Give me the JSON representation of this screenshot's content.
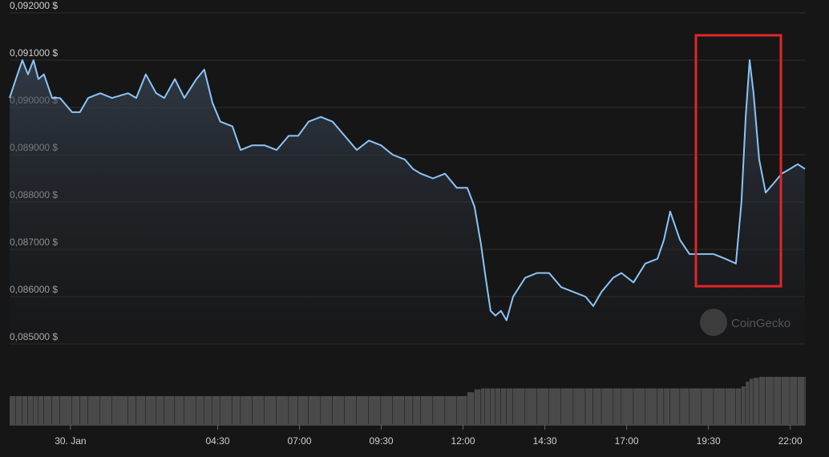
{
  "chart_data": {
    "type": "line",
    "color": "#8cc4f7",
    "grid": true,
    "watermark": "CoinGecko",
    "ylim": [
      0.085,
      0.092
    ],
    "yticks": [
      {
        "value": 0.085,
        "label": "0,085000 $"
      },
      {
        "value": 0.086,
        "label": "0,086000 $"
      },
      {
        "value": 0.087,
        "label": "0,087000 $"
      },
      {
        "value": 0.088,
        "label": "0,088000 $"
      },
      {
        "value": 0.089,
        "label": "0,089000 $"
      },
      {
        "value": 0.09,
        "label": "0,090000 $"
      },
      {
        "value": 0.091,
        "label": "0,091000 $"
      },
      {
        "value": 0.092,
        "label": "0,092000 $"
      }
    ],
    "xlim": [
      -1.86,
      22.45
    ],
    "xticks": [
      {
        "value": 0,
        "label": "30. Jan"
      },
      {
        "value": 4.5,
        "label": "04:30"
      },
      {
        "value": 7,
        "label": "07:00"
      },
      {
        "value": 9.5,
        "label": "09:30"
      },
      {
        "value": 12,
        "label": "12:00"
      },
      {
        "value": 14.5,
        "label": "14:30"
      },
      {
        "value": 17,
        "label": "17:00"
      },
      {
        "value": 19.5,
        "label": "19:30"
      },
      {
        "value": 22,
        "label": "22:00"
      }
    ],
    "x": [
      -1.86,
      -1.67,
      -1.47,
      -1.3,
      -1.13,
      -0.98,
      -0.81,
      -0.56,
      -0.32,
      0.05,
      0.29,
      0.54,
      0.91,
      1.27,
      1.76,
      2.01,
      2.3,
      2.62,
      2.87,
      3.19,
      3.48,
      3.85,
      4.09,
      4.34,
      4.58,
      4.95,
      5.2,
      5.56,
      5.93,
      6.3,
      6.67,
      6.96,
      7.28,
      7.65,
      8.01,
      8.38,
      8.75,
      9.12,
      9.49,
      9.85,
      10.22,
      10.47,
      10.71,
      11.08,
      11.45,
      11.81,
      12.13,
      12.35,
      12.55,
      12.67,
      12.84,
      12.99,
      13.16,
      13.33,
      13.53,
      13.9,
      14.26,
      14.63,
      15,
      15.37,
      15.74,
      15.98,
      16.23,
      16.59,
      16.84,
      17.21,
      17.57,
      17.94,
      18.14,
      18.33,
      18.63,
      18.92,
      19.29,
      19.66,
      20.02,
      20.34,
      20.51,
      20.64,
      20.76,
      20.88,
      21.05,
      21.25,
      21.5,
      21.74,
      21.99,
      22.23,
      22.45
    ],
    "values": [
      0.0902,
      0.0906,
      0.091,
      0.0907,
      0.091,
      0.0906,
      0.0907,
      0.0902,
      0.0902,
      0.0899,
      0.0899,
      0.0902,
      0.0903,
      0.0902,
      0.0903,
      0.0902,
      0.0907,
      0.0903,
      0.0902,
      0.0906,
      0.0902,
      0.0906,
      0.0908,
      0.0901,
      0.0897,
      0.0896,
      0.0891,
      0.0892,
      0.0892,
      0.0891,
      0.0894,
      0.0894,
      0.0897,
      0.0898,
      0.0897,
      0.0894,
      0.0891,
      0.0893,
      0.0892,
      0.089,
      0.0889,
      0.0887,
      0.0886,
      0.0885,
      0.0886,
      0.0883,
      0.0883,
      0.0879,
      0.0871,
      0.0865,
      0.0857,
      0.0856,
      0.0857,
      0.0855,
      0.086,
      0.0864,
      0.0865,
      0.0865,
      0.0862,
      0.0861,
      0.086,
      0.0858,
      0.0861,
      0.0864,
      0.0865,
      0.0863,
      0.0867,
      0.0868,
      0.0872,
      0.0878,
      0.0872,
      0.0869,
      0.0869,
      0.0869,
      0.0868,
      0.0867,
      0.088,
      0.0898,
      0.091,
      0.0903,
      0.0889,
      0.0882,
      0.0884,
      0.0886,
      0.0887,
      0.0888,
      0.0887
    ],
    "volume": [
      30,
      30,
      30,
      30,
      30,
      30,
      30,
      30,
      30,
      30,
      30,
      30,
      30,
      30,
      30,
      30,
      30,
      30,
      30,
      30,
      30,
      30,
      30,
      30,
      30,
      30,
      30,
      30,
      30,
      30,
      30,
      30,
      30,
      30,
      30,
      30,
      30,
      30,
      30,
      30,
      30,
      30,
      30,
      30,
      30,
      30,
      34,
      37,
      38,
      38,
      38,
      38,
      38,
      38,
      38,
      38,
      38,
      38,
      38,
      38,
      38,
      38,
      38,
      38,
      38,
      38,
      38,
      38,
      38,
      38,
      38,
      38,
      38,
      38,
      38,
      38,
      40,
      45,
      48,
      49,
      50,
      50,
      50,
      50,
      50,
      50,
      50
    ]
  }
}
